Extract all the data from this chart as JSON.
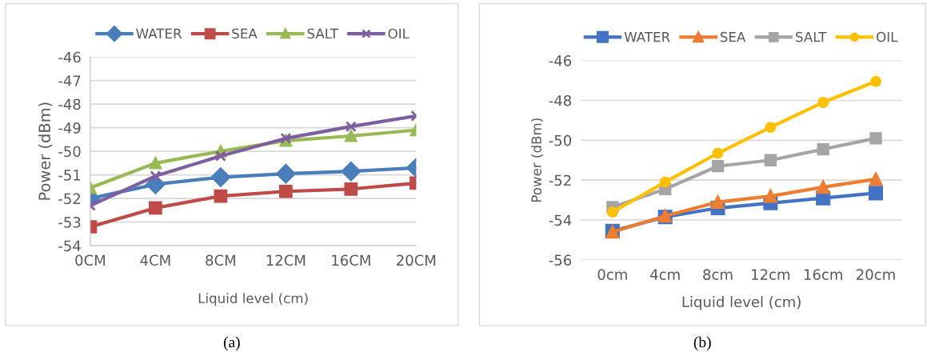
{
  "chart_data": [
    {
      "type": "line",
      "ylabel": "Power (dBm)",
      "xlabel": "Liquid level (cm)",
      "categories": [
        "0CM",
        "4CM",
        "8CM",
        "12CM",
        "16CM",
        "20CM"
      ],
      "ylim": [
        -54,
        -46
      ],
      "yticks": [
        -54,
        -53,
        -52,
        -51,
        -50,
        -49,
        -48,
        -47,
        -46
      ],
      "grid": "y",
      "legend": "top",
      "annotations": [
        "(a)"
      ],
      "series": [
        {
          "name": "WATER",
          "color": "#4a7ebb",
          "marker": "diamond",
          "values": [
            -52.0,
            -51.4,
            -51.1,
            -50.95,
            -50.85,
            -50.7
          ]
        },
        {
          "name": "SEA",
          "color": "#be4b48",
          "marker": "square",
          "values": [
            -53.2,
            -52.4,
            -51.9,
            -51.7,
            -51.6,
            -51.35
          ]
        },
        {
          "name": "SALT",
          "color": "#98b954",
          "marker": "triangle",
          "values": [
            -51.55,
            -50.5,
            -50.0,
            -49.55,
            -49.35,
            -49.1
          ]
        },
        {
          "name": "OIL",
          "color": "#7d5fa0",
          "marker": "cross",
          "values": [
            -52.3,
            -51.05,
            -50.2,
            -49.45,
            -48.95,
            -48.5
          ]
        }
      ]
    },
    {
      "type": "line",
      "ylabel": "Power (dBm)",
      "xlabel": "Liquid level (cm)",
      "categories": [
        "0cm",
        "4cm",
        "8cm",
        "12cm",
        "16cm",
        "20cm"
      ],
      "ylim": [
        -56,
        -46
      ],
      "yticks": [
        -56,
        -54,
        -52,
        -50,
        -48,
        -46
      ],
      "grid": "y",
      "legend": "top",
      "annotations": [
        "(b)"
      ],
      "series": [
        {
          "name": "WATER",
          "color": "#4472c4",
          "marker": "square",
          "values": [
            -54.55,
            -53.85,
            -53.4,
            -53.15,
            -52.9,
            -52.65
          ]
        },
        {
          "name": "SEA",
          "color": "#ed7d31",
          "marker": "triangle",
          "values": [
            -54.6,
            -53.8,
            -53.1,
            -52.8,
            -52.35,
            -51.95
          ]
        },
        {
          "name": "SALT",
          "color": "#a5a5a5",
          "marker": "square",
          "values": [
            -53.35,
            -52.45,
            -51.3,
            -51.0,
            -50.45,
            -49.9
          ]
        },
        {
          "name": "OIL",
          "color": "#ffc000",
          "marker": "circle",
          "values": [
            -53.6,
            -52.1,
            -50.65,
            -49.35,
            -48.1,
            -47.05
          ]
        }
      ]
    }
  ]
}
